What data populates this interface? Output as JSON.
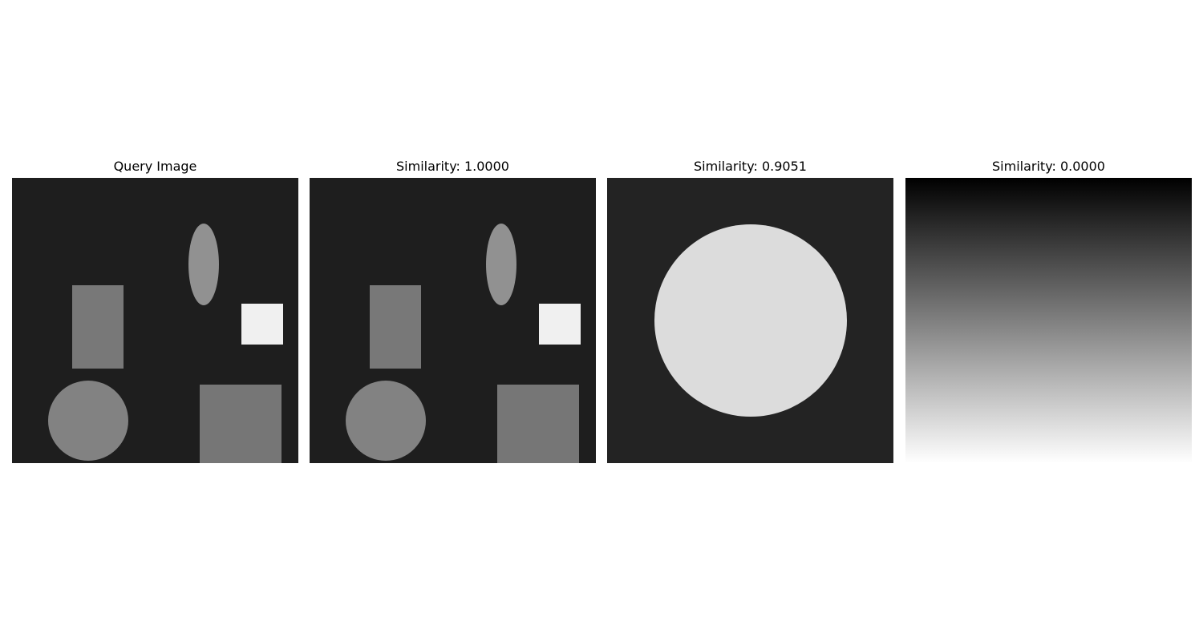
{
  "panels": [
    {
      "title": "Query Image"
    },
    {
      "title": "Similarity: 1.0000"
    },
    {
      "title": "Similarity: 0.9051"
    },
    {
      "title": "Similarity: 0.0000"
    }
  ],
  "colors": {
    "background": "#ffffff",
    "scene_dark": "#1e1e1e",
    "scene_dark_alt": "#232323",
    "shape_gray_rect": "#787878",
    "shape_gray_circle": "#828282",
    "shape_gray_ellipse": "#919191",
    "shape_gray_square": "#767676",
    "shape_white_rect": "#f0f0f0",
    "big_circle": "#dcdcdc",
    "gradient_top": "#000000",
    "gradient_bottom": "#ffffff"
  }
}
